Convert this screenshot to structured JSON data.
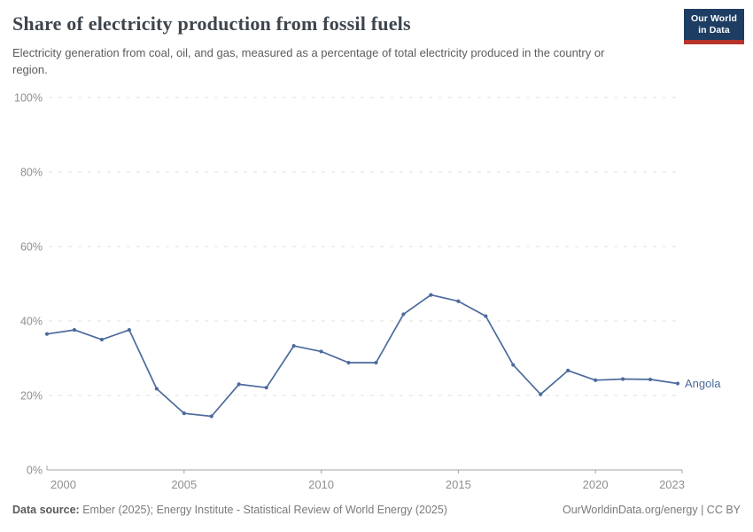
{
  "header": {
    "title": "Share of electricity production from fossil fuels",
    "subtitle": "Electricity generation from coal, oil, and gas, measured as a percentage of total electricity produced in the country or region.",
    "logo_line1": "Our World",
    "logo_line2": "in Data",
    "logo_bg_color": "#1d3d63",
    "logo_bar_color": "#b5342b"
  },
  "footer": {
    "source_label": "Data source:",
    "source_value": "Ember (2025); Energy Institute - Statistical Review of World Energy (2025)",
    "credit": "OurWorldinData.org/energy | CC BY"
  },
  "chart_data": {
    "type": "line",
    "title": "Share of electricity production from fossil fuels",
    "x": [
      2000,
      2001,
      2002,
      2003,
      2004,
      2005,
      2006,
      2007,
      2008,
      2009,
      2010,
      2011,
      2012,
      2013,
      2014,
      2015,
      2016,
      2017,
      2018,
      2019,
      2020,
      2021,
      2022,
      2023
    ],
    "series": [
      {
        "name": "Angola",
        "color": "#4c6a9c",
        "values": [
          36.5,
          37.6,
          35.0,
          37.6,
          21.8,
          15.2,
          14.4,
          23.0,
          22.1,
          33.3,
          31.8,
          28.8,
          28.8,
          41.8,
          47.0,
          45.3,
          41.3,
          28.2,
          20.3,
          26.7,
          24.1,
          24.4,
          24.3,
          23.2
        ]
      }
    ],
    "xlabel": "",
    "ylabel": "",
    "ylim": [
      0,
      100
    ],
    "yticks": [
      0,
      20,
      40,
      60,
      80,
      100
    ],
    "ytick_suffix": "%",
    "xticks": [
      2000,
      2005,
      2010,
      2015,
      2020,
      2023
    ],
    "grid": "horizontal-dashed",
    "legend_position": "end-of-line-label",
    "colors": {
      "gridline": "#e2e2e2",
      "axis": "#a3a3a3",
      "tick_label": "#8f8f8f"
    }
  }
}
